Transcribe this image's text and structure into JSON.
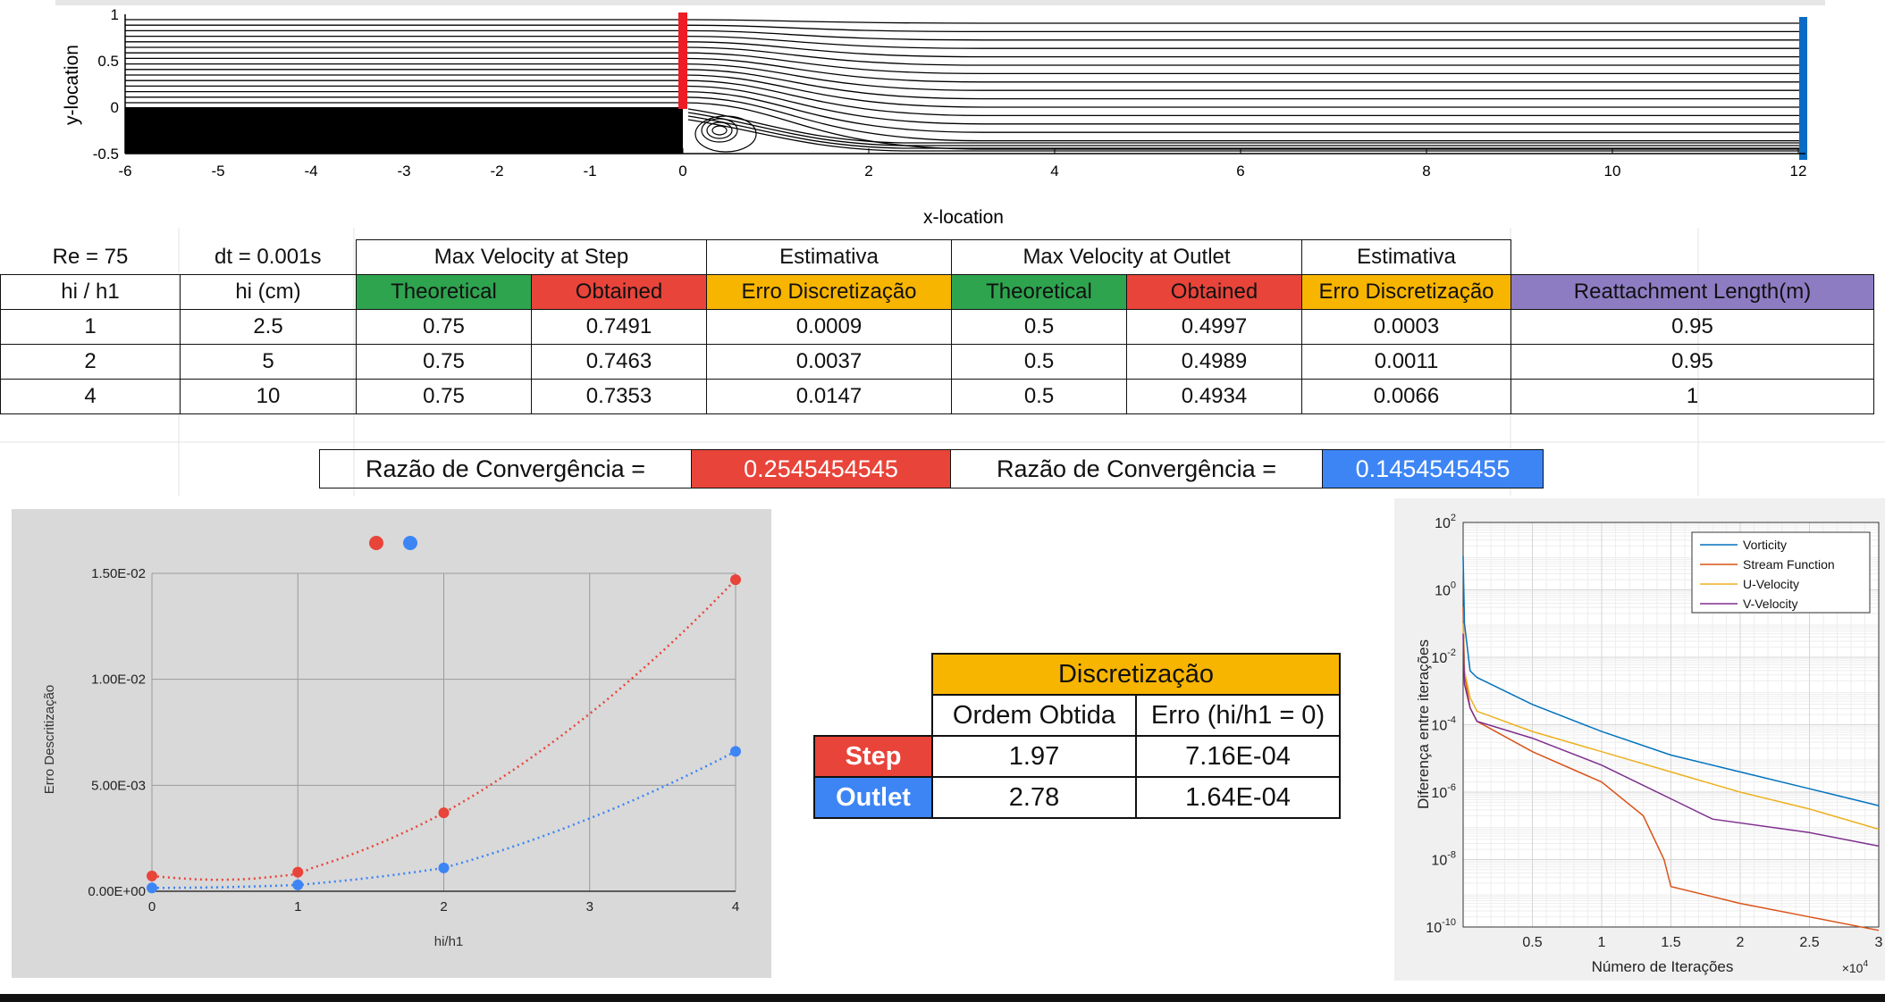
{
  "flow_plot": {
    "xlabel": "x-location",
    "ylabel": "y-location",
    "xticks": [
      "-6",
      "-5",
      "-4",
      "-3",
      "-2",
      "-1",
      "0",
      "2",
      "4",
      "6",
      "8",
      "10",
      "12"
    ],
    "yticks": [
      "1",
      "0.5",
      "0",
      "-0.5"
    ],
    "colors": {
      "inlet": "#ee1c25",
      "outlet": "#0a6cc4",
      "step": "#000000"
    }
  },
  "table": {
    "row1": [
      "Re = 75",
      "dt = 0.001s",
      "Max Velocity at Step",
      "Estimativa",
      "Max Velocity at Outlet",
      "Estimativa"
    ],
    "headers": [
      "hi / h1",
      "hi (cm)",
      "Theoretical",
      "Obtained",
      "Erro Discretização",
      "Theoretical",
      "Obtained",
      "Erro Discretização",
      "Reattachment Length(m)"
    ],
    "rows": [
      [
        "1",
        "2.5",
        "0.75",
        "0.7491",
        "0.0009",
        "0.5",
        "0.4997",
        "0.0003",
        "0.95"
      ],
      [
        "2",
        "5",
        "0.75",
        "0.7463",
        "0.0037",
        "0.5",
        "0.4989",
        "0.0011",
        "0.95"
      ],
      [
        "4",
        "10",
        "0.75",
        "0.7353",
        "0.0147",
        "0.5",
        "0.4934",
        "0.0066",
        "1"
      ]
    ]
  },
  "convergence": {
    "label": "Razão de Convergência =",
    "step_value": "0.2545454545",
    "outlet_value": "0.1454545455"
  },
  "chart_data": [
    {
      "type": "scatter",
      "xlabel": "hi/h1",
      "ylabel": "Erro Descritização",
      "xlim": [
        0,
        4
      ],
      "ylim": [
        0,
        0.015
      ],
      "xticks": [
        "0",
        "1",
        "2",
        "3",
        "4"
      ],
      "yticks": [
        "0.00E+00",
        "5.00E-03",
        "1.00E-02",
        "1.50E-02"
      ],
      "legend": "top-center",
      "series": [
        {
          "color": "#e8443a",
          "x": [
            0,
            1,
            2,
            4
          ],
          "y": [
            0.00072,
            0.0009,
            0.0037,
            0.0147
          ]
        },
        {
          "color": "#3d85f5",
          "x": [
            0,
            1,
            2,
            4
          ],
          "y": [
            0.00016,
            0.0003,
            0.0011,
            0.0066
          ]
        }
      ]
    },
    {
      "type": "line",
      "xlabel": "Número de Iterações",
      "ylabel": "Diferença entre iterações",
      "xscale_label": "×10^4",
      "xlim": [
        0,
        3
      ],
      "ylim_log10": [
        -10,
        2
      ],
      "xticks": [
        "0.5",
        "1",
        "1.5",
        "2",
        "2.5",
        "3"
      ],
      "yticks": [
        "10^2",
        "10^0",
        "10^-2",
        "10^-4",
        "10^-6",
        "10^-8",
        "10^-10"
      ],
      "legend": "top-right",
      "series": [
        {
          "name": "Vorticity",
          "color": "#0072bd",
          "x": [
            0.0,
            0.01,
            0.05,
            0.1,
            0.5,
            1.0,
            1.5,
            2.0,
            2.5,
            3.0
          ],
          "log10y": [
            1.0,
            -1.0,
            -2.4,
            -2.6,
            -3.4,
            -4.2,
            -4.9,
            -5.4,
            -5.9,
            -6.4
          ]
        },
        {
          "name": "Stream Function",
          "color": "#d95319",
          "x": [
            0.0,
            0.01,
            0.05,
            0.1,
            0.5,
            1.0,
            1.3,
            1.45,
            1.5,
            2.0,
            2.5,
            3.0
          ],
          "log10y": [
            -0.5,
            -2.5,
            -3.5,
            -3.9,
            -4.8,
            -5.7,
            -6.7,
            -8.0,
            -8.8,
            -9.3,
            -9.7,
            -10.1
          ]
        },
        {
          "name": "U-Velocity",
          "color": "#edb120",
          "x": [
            0.0,
            0.01,
            0.05,
            0.1,
            0.5,
            1.0,
            1.5,
            2.0,
            2.5,
            3.0
          ],
          "log10y": [
            -1.0,
            -2.4,
            -3.2,
            -3.6,
            -4.2,
            -4.8,
            -5.4,
            -6.0,
            -6.5,
            -7.1
          ]
        },
        {
          "name": "V-Velocity",
          "color": "#7e2f8e",
          "x": [
            0.0,
            0.01,
            0.05,
            0.1,
            0.5,
            1.0,
            1.5,
            1.8,
            2.5,
            3.0
          ],
          "log10y": [
            -1.3,
            -2.8,
            -3.5,
            -3.9,
            -4.4,
            -5.2,
            -6.2,
            -6.8,
            -7.2,
            -7.6
          ]
        }
      ]
    }
  ],
  "discretizacao": {
    "title": "Discretização",
    "col1": "Ordem Obtida",
    "col2": "Erro (hi/h1 = 0)",
    "rows": [
      {
        "label": "Step",
        "order": "1.97",
        "error": "7.16E-04"
      },
      {
        "label": "Outlet",
        "order": "2.78",
        "error": "1.64E-04"
      }
    ],
    "colors": {
      "step": "#e8443a",
      "outlet": "#3d85f5",
      "header": "#f8b500"
    }
  }
}
